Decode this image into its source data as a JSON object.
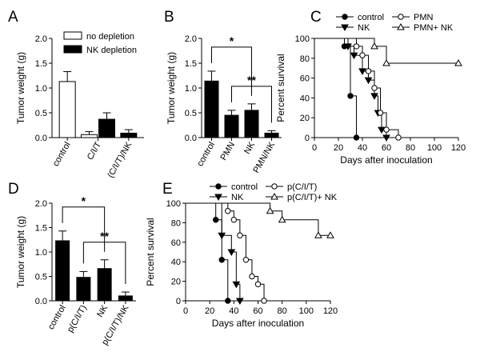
{
  "chart_data": [
    {
      "panel": "A",
      "type": "bar",
      "ylabel": "Tumor weight (g)",
      "ylim": [
        0,
        2.0
      ],
      "yticks": [
        "0.0",
        "0.5",
        "1.0",
        "1.5",
        "2.0"
      ],
      "categories": [
        "control",
        "C/I/T",
        "(C/I/T)/NK"
      ],
      "legend": [
        "no depletion",
        "NK depletion"
      ],
      "bars": [
        {
          "cat": 0,
          "value": 1.13,
          "err": 0.2,
          "fill": "#ffffff"
        },
        {
          "cat": 1,
          "value": 0.06,
          "err": 0.06,
          "fill": "#ffffff"
        },
        {
          "cat": 1,
          "value": 0.37,
          "err": 0.13,
          "fill": "#000000"
        },
        {
          "cat": 2,
          "value": 0.09,
          "err": 0.07,
          "fill": "#000000"
        }
      ]
    },
    {
      "panel": "B",
      "type": "bar",
      "ylabel": "Tumor weight (g)",
      "ylim": [
        0,
        2.0
      ],
      "yticks": [
        "0.0",
        "0.5",
        "1.0",
        "1.5",
        "2.0"
      ],
      "categories": [
        "control",
        "PMN",
        "NK",
        "PMN/NK"
      ],
      "values": [
        1.14,
        0.45,
        0.55,
        0.09
      ],
      "errors": [
        0.2,
        0.1,
        0.13,
        0.05
      ],
      "annotations": [
        {
          "from": 0,
          "to": 2,
          "text": "*"
        },
        {
          "from": 1,
          "to": 3,
          "text": "**"
        }
      ]
    },
    {
      "panel": "C",
      "type": "line",
      "ylabel": "Percent survival",
      "xlabel": "Days after inoculation",
      "xlim": [
        0,
        120
      ],
      "ylim": [
        0,
        100
      ],
      "xticks": [
        0,
        20,
        40,
        60,
        80,
        100,
        120
      ],
      "yticks": [
        0,
        20,
        40,
        60,
        80,
        100
      ],
      "series": [
        {
          "name": "control",
          "marker": "circle-filled",
          "points": [
            [
              0,
              100
            ],
            [
              25,
              100
            ],
            [
              25,
              92
            ],
            [
              30,
              92
            ],
            [
              30,
              42
            ],
            [
              35,
              42
            ],
            [
              35,
              0
            ]
          ]
        },
        {
          "name": "NK",
          "marker": "triangle-down-filled",
          "points": [
            [
              0,
              100
            ],
            [
              28,
              100
            ],
            [
              28,
              92
            ],
            [
              33,
              92
            ],
            [
              33,
              83
            ],
            [
              40,
              83
            ],
            [
              40,
              67
            ],
            [
              45,
              67
            ],
            [
              45,
              58
            ],
            [
              50,
              58
            ],
            [
              50,
              42
            ],
            [
              53,
              42
            ],
            [
              53,
              25
            ],
            [
              56,
              25
            ],
            [
              56,
              8
            ],
            [
              60,
              8
            ],
            [
              60,
              0
            ]
          ]
        },
        {
          "name": "PMN",
          "marker": "circle-open",
          "points": [
            [
              0,
              100
            ],
            [
              35,
              100
            ],
            [
              35,
              92
            ],
            [
              40,
              92
            ],
            [
              40,
              83
            ],
            [
              45,
              83
            ],
            [
              45,
              67
            ],
            [
              50,
              67
            ],
            [
              50,
              50
            ],
            [
              55,
              50
            ],
            [
              55,
              25
            ],
            [
              60,
              25
            ],
            [
              60,
              8
            ],
            [
              70,
              8
            ],
            [
              70,
              0
            ]
          ]
        },
        {
          "name": "PMN+ NK",
          "marker": "triangle-up-open",
          "points": [
            [
              0,
              100
            ],
            [
              50,
              100
            ],
            [
              50,
              92
            ],
            [
              60,
              92
            ],
            [
              60,
              75
            ],
            [
              120,
              75
            ]
          ]
        }
      ]
    },
    {
      "panel": "D",
      "type": "bar",
      "ylabel": "Tumor weight (g)",
      "ylim": [
        0,
        2.0
      ],
      "yticks": [
        "0.0",
        "0.5",
        "1.0",
        "1.5",
        "2.0"
      ],
      "categories": [
        "control",
        "p(C/I/T)",
        "NK",
        "p(C/I/T)/NK"
      ],
      "values": [
        1.23,
        0.48,
        0.66,
        0.1
      ],
      "errors": [
        0.2,
        0.12,
        0.18,
        0.08
      ],
      "annotations": [
        {
          "from": 0,
          "to": 2,
          "text": "*"
        },
        {
          "from": 1,
          "to": 3,
          "text": "**"
        }
      ]
    },
    {
      "panel": "E",
      "type": "line",
      "ylabel": "Percent survival",
      "xlabel": "Days after inoculation",
      "xlim": [
        0,
        120
      ],
      "ylim": [
        0,
        100
      ],
      "xticks": [
        0,
        20,
        40,
        60,
        80,
        100,
        120
      ],
      "yticks": [
        0,
        20,
        40,
        60,
        80,
        100
      ],
      "series": [
        {
          "name": "control",
          "marker": "circle-filled",
          "points": [
            [
              0,
              100
            ],
            [
              25,
              100
            ],
            [
              25,
              83
            ],
            [
              30,
              83
            ],
            [
              30,
              42
            ],
            [
              35,
              42
            ],
            [
              35,
              0
            ]
          ]
        },
        {
          "name": "NK",
          "marker": "triangle-down-filled",
          "points": [
            [
              0,
              100
            ],
            [
              30,
              100
            ],
            [
              30,
              67
            ],
            [
              38,
              67
            ],
            [
              38,
              50
            ],
            [
              42,
              50
            ],
            [
              42,
              17
            ],
            [
              45,
              17
            ],
            [
              45,
              0
            ]
          ]
        },
        {
          "name": "p(C/I/T)",
          "marker": "circle-open",
          "points": [
            [
              0,
              100
            ],
            [
              35,
              100
            ],
            [
              35,
              92
            ],
            [
              40,
              92
            ],
            [
              40,
              83
            ],
            [
              45,
              83
            ],
            [
              45,
              67
            ],
            [
              50,
              67
            ],
            [
              50,
              42
            ],
            [
              55,
              42
            ],
            [
              55,
              25
            ],
            [
              60,
              25
            ],
            [
              60,
              17
            ],
            [
              65,
              17
            ],
            [
              65,
              0
            ]
          ]
        },
        {
          "name": "p(C/I/T)+ NK",
          "marker": "triangle-up-open",
          "points": [
            [
              0,
              100
            ],
            [
              70,
              100
            ],
            [
              70,
              92
            ],
            [
              80,
              92
            ],
            [
              80,
              83
            ],
            [
              110,
              83
            ],
            [
              110,
              67
            ],
            [
              120,
              67
            ]
          ]
        }
      ]
    }
  ]
}
